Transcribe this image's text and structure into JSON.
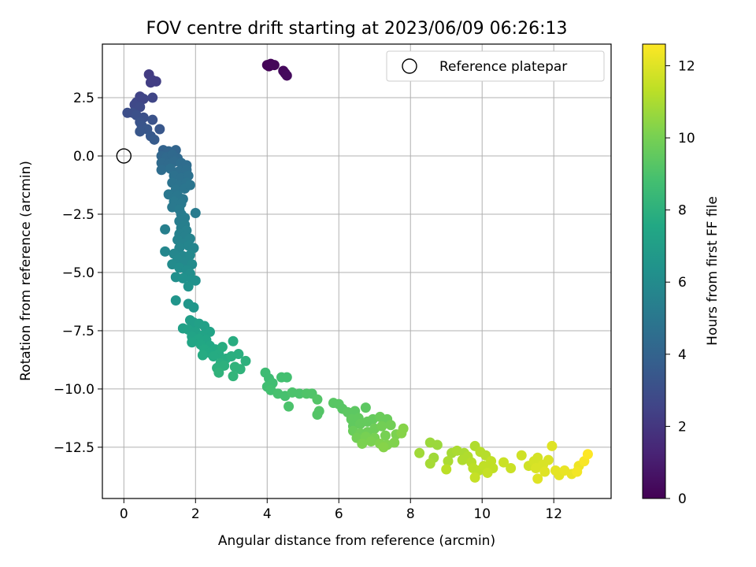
{
  "chart_data": {
    "type": "scatter",
    "title": "FOV centre drift starting at 2023/06/09 06:26:13",
    "xlabel": "Angular distance from reference (arcmin)",
    "ylabel": "Rotation from reference (arcmin)",
    "xlim": [
      -0.6,
      13.6
    ],
    "ylim": [
      -14.7,
      4.8
    ],
    "xticks": [
      0,
      2,
      4,
      6,
      8,
      10,
      12
    ],
    "yticks": [
      2.5,
      0.0,
      -2.5,
      -5.0,
      -7.5,
      -10.0,
      -12.5
    ],
    "ytick_labels": [
      "2.5",
      "0.0",
      "−2.5",
      "−5.0",
      "−7.5",
      "−10.0",
      "−12.5"
    ],
    "grid": true,
    "legend": {
      "placement": "top-right",
      "entries": [
        "Reference platepar"
      ]
    },
    "reference_point": {
      "x": 0,
      "y": 0,
      "label": "Reference platepar"
    },
    "colorbar": {
      "label": "Hours from first FF file",
      "colormap": "viridis",
      "range": [
        0,
        12.6
      ],
      "ticks": [
        0,
        2,
        4,
        6,
        8,
        10,
        12
      ]
    },
    "points": [
      {
        "x": 4.0,
        "y": 3.9,
        "h": 0.1
      },
      {
        "x": 4.05,
        "y": 3.85,
        "h": 0.1
      },
      {
        "x": 4.1,
        "y": 3.95,
        "h": 0.15
      },
      {
        "x": 4.2,
        "y": 3.9,
        "h": 0.2
      },
      {
        "x": 4.45,
        "y": 3.65,
        "h": 0.3
      },
      {
        "x": 4.5,
        "y": 3.55,
        "h": 0.3
      },
      {
        "x": 4.55,
        "y": 3.45,
        "h": 0.35
      },
      {
        "x": 0.7,
        "y": 3.5,
        "h": 2.2
      },
      {
        "x": 0.75,
        "y": 3.15,
        "h": 2.3
      },
      {
        "x": 0.9,
        "y": 3.2,
        "h": 2.3
      },
      {
        "x": 0.8,
        "y": 3.25,
        "h": 2.3
      },
      {
        "x": 0.45,
        "y": 2.55,
        "h": 2.5
      },
      {
        "x": 0.35,
        "y": 2.3,
        "h": 2.6
      },
      {
        "x": 0.55,
        "y": 2.45,
        "h": 2.6
      },
      {
        "x": 0.8,
        "y": 2.5,
        "h": 2.6
      },
      {
        "x": 0.3,
        "y": 2.2,
        "h": 2.7
      },
      {
        "x": 0.45,
        "y": 2.1,
        "h": 2.8
      },
      {
        "x": 0.1,
        "y": 1.85,
        "h": 3.0
      },
      {
        "x": 0.25,
        "y": 1.85,
        "h": 3.0
      },
      {
        "x": 0.35,
        "y": 1.75,
        "h": 3.1
      },
      {
        "x": 0.55,
        "y": 1.65,
        "h": 3.1
      },
      {
        "x": 0.45,
        "y": 1.45,
        "h": 3.2
      },
      {
        "x": 0.8,
        "y": 1.55,
        "h": 3.2
      },
      {
        "x": 0.5,
        "y": 1.3,
        "h": 3.3
      },
      {
        "x": 0.65,
        "y": 1.15,
        "h": 3.4
      },
      {
        "x": 0.45,
        "y": 1.05,
        "h": 3.4
      },
      {
        "x": 1.0,
        "y": 1.15,
        "h": 3.4
      },
      {
        "x": 0.75,
        "y": 0.85,
        "h": 3.5
      },
      {
        "x": 0.85,
        "y": 0.7,
        "h": 3.6
      },
      {
        "x": 1.1,
        "y": 0.25,
        "h": 4.0
      },
      {
        "x": 1.25,
        "y": 0.2,
        "h": 4.1
      },
      {
        "x": 1.45,
        "y": 0.25,
        "h": 4.1
      },
      {
        "x": 1.05,
        "y": 0.0,
        "h": 4.2
      },
      {
        "x": 1.2,
        "y": -0.05,
        "h": 4.3
      },
      {
        "x": 1.35,
        "y": 0.05,
        "h": 4.3
      },
      {
        "x": 1.5,
        "y": -0.1,
        "h": 4.3
      },
      {
        "x": 1.05,
        "y": -0.3,
        "h": 4.4
      },
      {
        "x": 1.25,
        "y": -0.35,
        "h": 4.4
      },
      {
        "x": 1.4,
        "y": -0.25,
        "h": 4.4
      },
      {
        "x": 1.6,
        "y": -0.3,
        "h": 4.5
      },
      {
        "x": 1.75,
        "y": -0.4,
        "h": 4.5
      },
      {
        "x": 1.05,
        "y": -0.6,
        "h": 4.5
      },
      {
        "x": 1.3,
        "y": -0.55,
        "h": 4.6
      },
      {
        "x": 1.55,
        "y": -0.65,
        "h": 4.6
      },
      {
        "x": 1.75,
        "y": -0.6,
        "h": 4.6
      },
      {
        "x": 1.4,
        "y": -0.85,
        "h": 4.7
      },
      {
        "x": 1.6,
        "y": -0.95,
        "h": 4.7
      },
      {
        "x": 1.8,
        "y": -0.85,
        "h": 4.7
      },
      {
        "x": 1.35,
        "y": -1.15,
        "h": 4.8
      },
      {
        "x": 1.55,
        "y": -1.25,
        "h": 4.8
      },
      {
        "x": 1.75,
        "y": -1.15,
        "h": 4.8
      },
      {
        "x": 1.45,
        "y": -1.45,
        "h": 4.9
      },
      {
        "x": 1.7,
        "y": -1.4,
        "h": 4.9
      },
      {
        "x": 1.85,
        "y": -1.25,
        "h": 4.9
      },
      {
        "x": 1.25,
        "y": -1.65,
        "h": 5.0
      },
      {
        "x": 1.5,
        "y": -1.7,
        "h": 5.0
      },
      {
        "x": 1.65,
        "y": -1.85,
        "h": 5.0
      },
      {
        "x": 1.4,
        "y": -1.95,
        "h": 5.1
      },
      {
        "x": 1.6,
        "y": -2.05,
        "h": 5.1
      },
      {
        "x": 1.35,
        "y": -2.2,
        "h": 5.1
      },
      {
        "x": 1.55,
        "y": -2.3,
        "h": 5.2
      },
      {
        "x": 2.0,
        "y": -2.45,
        "h": 5.2
      },
      {
        "x": 1.6,
        "y": -2.5,
        "h": 5.2
      },
      {
        "x": 1.7,
        "y": -2.65,
        "h": 5.3
      },
      {
        "x": 1.55,
        "y": -2.8,
        "h": 5.3
      },
      {
        "x": 1.7,
        "y": -2.95,
        "h": 5.4
      },
      {
        "x": 1.15,
        "y": -3.15,
        "h": 5.4
      },
      {
        "x": 1.6,
        "y": -3.1,
        "h": 5.4
      },
      {
        "x": 1.75,
        "y": -3.2,
        "h": 5.5
      },
      {
        "x": 1.55,
        "y": -3.35,
        "h": 5.5
      },
      {
        "x": 1.7,
        "y": -3.45,
        "h": 5.5
      },
      {
        "x": 1.85,
        "y": -3.55,
        "h": 5.6
      },
      {
        "x": 1.5,
        "y": -3.6,
        "h": 5.6
      },
      {
        "x": 1.65,
        "y": -3.75,
        "h": 5.6
      },
      {
        "x": 1.8,
        "y": -3.85,
        "h": 5.7
      },
      {
        "x": 1.95,
        "y": -3.95,
        "h": 5.7
      },
      {
        "x": 1.55,
        "y": -3.95,
        "h": 5.7
      },
      {
        "x": 1.15,
        "y": -4.1,
        "h": 5.8
      },
      {
        "x": 1.4,
        "y": -4.2,
        "h": 5.8
      },
      {
        "x": 1.65,
        "y": -4.3,
        "h": 5.8
      },
      {
        "x": 1.85,
        "y": -4.25,
        "h": 5.9
      },
      {
        "x": 1.5,
        "y": -4.45,
        "h": 5.9
      },
      {
        "x": 1.7,
        "y": -4.55,
        "h": 5.9
      },
      {
        "x": 1.35,
        "y": -4.65,
        "h": 6.0
      },
      {
        "x": 1.9,
        "y": -4.65,
        "h": 6.0
      },
      {
        "x": 1.55,
        "y": -4.8,
        "h": 6.1
      },
      {
        "x": 1.75,
        "y": -4.9,
        "h": 6.1
      },
      {
        "x": 1.85,
        "y": -5.05,
        "h": 6.2
      },
      {
        "x": 1.45,
        "y": -5.2,
        "h": 6.2
      },
      {
        "x": 1.65,
        "y": -5.25,
        "h": 6.3
      },
      {
        "x": 1.9,
        "y": -5.3,
        "h": 6.3
      },
      {
        "x": 2.0,
        "y": -5.35,
        "h": 6.3
      },
      {
        "x": 1.8,
        "y": -5.6,
        "h": 6.4
      },
      {
        "x": 1.45,
        "y": -6.2,
        "h": 6.5
      },
      {
        "x": 1.8,
        "y": -6.35,
        "h": 6.6
      },
      {
        "x": 1.95,
        "y": -6.5,
        "h": 6.6
      },
      {
        "x": 1.85,
        "y": -7.05,
        "h": 7.0
      },
      {
        "x": 1.95,
        "y": -7.15,
        "h": 7.0
      },
      {
        "x": 2.1,
        "y": -7.2,
        "h": 7.1
      },
      {
        "x": 2.25,
        "y": -7.3,
        "h": 7.1
      },
      {
        "x": 1.65,
        "y": -7.4,
        "h": 7.1
      },
      {
        "x": 1.8,
        "y": -7.45,
        "h": 7.2
      },
      {
        "x": 2.0,
        "y": -7.55,
        "h": 7.2
      },
      {
        "x": 2.4,
        "y": -7.55,
        "h": 7.3
      },
      {
        "x": 2.2,
        "y": -7.7,
        "h": 7.3
      },
      {
        "x": 1.9,
        "y": -7.75,
        "h": 7.3
      },
      {
        "x": 2.1,
        "y": -7.85,
        "h": 7.4
      },
      {
        "x": 1.9,
        "y": -8.0,
        "h": 7.4
      },
      {
        "x": 2.3,
        "y": -7.9,
        "h": 7.4
      },
      {
        "x": 2.15,
        "y": -8.1,
        "h": 7.5
      },
      {
        "x": 2.4,
        "y": -8.15,
        "h": 7.5
      },
      {
        "x": 2.25,
        "y": -8.3,
        "h": 7.6
      },
      {
        "x": 2.55,
        "y": -8.3,
        "h": 7.6
      },
      {
        "x": 2.4,
        "y": -8.45,
        "h": 7.6
      },
      {
        "x": 2.2,
        "y": -8.55,
        "h": 7.7
      },
      {
        "x": 2.65,
        "y": -8.5,
        "h": 7.7
      },
      {
        "x": 2.5,
        "y": -8.6,
        "h": 7.7
      },
      {
        "x": 2.75,
        "y": -8.2,
        "h": 7.8
      },
      {
        "x": 3.05,
        "y": -7.95,
        "h": 7.8
      },
      {
        "x": 2.85,
        "y": -8.7,
        "h": 7.8
      },
      {
        "x": 3.0,
        "y": -8.6,
        "h": 7.9
      },
      {
        "x": 3.2,
        "y": -8.5,
        "h": 7.9
      },
      {
        "x": 2.7,
        "y": -8.9,
        "h": 7.9
      },
      {
        "x": 3.4,
        "y": -8.8,
        "h": 8.0
      },
      {
        "x": 2.6,
        "y": -9.1,
        "h": 8.0
      },
      {
        "x": 2.8,
        "y": -9.0,
        "h": 8.0
      },
      {
        "x": 3.1,
        "y": -9.05,
        "h": 8.1
      },
      {
        "x": 3.25,
        "y": -9.15,
        "h": 8.1
      },
      {
        "x": 2.65,
        "y": -9.3,
        "h": 8.1
      },
      {
        "x": 3.05,
        "y": -9.45,
        "h": 8.2
      },
      {
        "x": 3.95,
        "y": -9.3,
        "h": 8.6
      },
      {
        "x": 4.05,
        "y": -9.55,
        "h": 8.6
      },
      {
        "x": 4.15,
        "y": -9.75,
        "h": 8.7
      },
      {
        "x": 4.0,
        "y": -9.9,
        "h": 8.7
      },
      {
        "x": 4.1,
        "y": -10.05,
        "h": 8.8
      },
      {
        "x": 4.4,
        "y": -9.5,
        "h": 8.8
      },
      {
        "x": 4.55,
        "y": -9.5,
        "h": 8.8
      },
      {
        "x": 4.3,
        "y": -10.2,
        "h": 8.9
      },
      {
        "x": 4.5,
        "y": -10.3,
        "h": 8.9
      },
      {
        "x": 4.7,
        "y": -10.15,
        "h": 9.0
      },
      {
        "x": 4.9,
        "y": -10.2,
        "h": 9.0
      },
      {
        "x": 4.6,
        "y": -10.75,
        "h": 9.0
      },
      {
        "x": 5.1,
        "y": -10.2,
        "h": 9.1
      },
      {
        "x": 5.25,
        "y": -10.2,
        "h": 9.1
      },
      {
        "x": 5.4,
        "y": -10.45,
        "h": 9.2
      },
      {
        "x": 5.45,
        "y": -10.95,
        "h": 9.2
      },
      {
        "x": 5.4,
        "y": -11.1,
        "h": 9.2
      },
      {
        "x": 5.85,
        "y": -10.6,
        "h": 9.3
      },
      {
        "x": 6.0,
        "y": -10.65,
        "h": 9.3
      },
      {
        "x": 6.1,
        "y": -10.85,
        "h": 9.3
      },
      {
        "x": 6.25,
        "y": -11.0,
        "h": 9.4
      },
      {
        "x": 6.45,
        "y": -10.95,
        "h": 9.4
      },
      {
        "x": 6.75,
        "y": -10.8,
        "h": 9.4
      },
      {
        "x": 6.35,
        "y": -11.3,
        "h": 9.5
      },
      {
        "x": 6.55,
        "y": -11.25,
        "h": 9.5
      },
      {
        "x": 6.4,
        "y": -11.6,
        "h": 9.5
      },
      {
        "x": 6.6,
        "y": -11.5,
        "h": 9.6
      },
      {
        "x": 6.8,
        "y": -11.4,
        "h": 9.6
      },
      {
        "x": 6.95,
        "y": -11.3,
        "h": 9.6
      },
      {
        "x": 7.15,
        "y": -11.2,
        "h": 9.7
      },
      {
        "x": 7.35,
        "y": -11.3,
        "h": 9.7
      },
      {
        "x": 6.4,
        "y": -11.8,
        "h": 9.7
      },
      {
        "x": 6.6,
        "y": -11.9,
        "h": 9.8
      },
      {
        "x": 6.8,
        "y": -11.85,
        "h": 9.8
      },
      {
        "x": 7.0,
        "y": -11.7,
        "h": 9.8
      },
      {
        "x": 7.2,
        "y": -11.6,
        "h": 9.9
      },
      {
        "x": 7.45,
        "y": -11.55,
        "h": 9.9
      },
      {
        "x": 6.5,
        "y": -12.1,
        "h": 9.9
      },
      {
        "x": 6.75,
        "y": -12.05,
        "h": 10.0
      },
      {
        "x": 7.0,
        "y": -12.1,
        "h": 10.0
      },
      {
        "x": 7.3,
        "y": -12.0,
        "h": 10.0
      },
      {
        "x": 7.6,
        "y": -11.95,
        "h": 10.1
      },
      {
        "x": 6.65,
        "y": -12.35,
        "h": 10.1
      },
      {
        "x": 6.9,
        "y": -12.25,
        "h": 10.1
      },
      {
        "x": 7.15,
        "y": -12.35,
        "h": 10.2
      },
      {
        "x": 7.35,
        "y": -12.4,
        "h": 10.2
      },
      {
        "x": 7.55,
        "y": -12.3,
        "h": 10.2
      },
      {
        "x": 7.8,
        "y": -11.7,
        "h": 10.3
      },
      {
        "x": 7.75,
        "y": -11.9,
        "h": 10.3
      },
      {
        "x": 7.25,
        "y": -12.5,
        "h": 10.3
      },
      {
        "x": 8.55,
        "y": -12.3,
        "h": 10.7
      },
      {
        "x": 8.75,
        "y": -12.4,
        "h": 10.7
      },
      {
        "x": 8.25,
        "y": -12.75,
        "h": 10.8
      },
      {
        "x": 8.65,
        "y": -12.95,
        "h": 10.8
      },
      {
        "x": 8.55,
        "y": -13.2,
        "h": 10.9
      },
      {
        "x": 9.15,
        "y": -12.75,
        "h": 10.9
      },
      {
        "x": 9.05,
        "y": -13.1,
        "h": 11.0
      },
      {
        "x": 9.3,
        "y": -12.65,
        "h": 11.0
      },
      {
        "x": 9.5,
        "y": -12.75,
        "h": 11.0
      },
      {
        "x": 9.45,
        "y": -13.05,
        "h": 11.1
      },
      {
        "x": 9.6,
        "y": -12.9,
        "h": 11.1
      },
      {
        "x": 9.8,
        "y": -12.45,
        "h": 11.1
      },
      {
        "x": 9.7,
        "y": -13.15,
        "h": 11.2
      },
      {
        "x": 9.95,
        "y": -12.7,
        "h": 11.2
      },
      {
        "x": 10.1,
        "y": -12.85,
        "h": 11.2
      },
      {
        "x": 9.0,
        "y": -13.45,
        "h": 11.3
      },
      {
        "x": 9.75,
        "y": -13.4,
        "h": 11.3
      },
      {
        "x": 9.9,
        "y": -13.5,
        "h": 11.3
      },
      {
        "x": 10.05,
        "y": -13.3,
        "h": 11.4
      },
      {
        "x": 10.25,
        "y": -13.1,
        "h": 11.4
      },
      {
        "x": 10.3,
        "y": -13.4,
        "h": 11.4
      },
      {
        "x": 9.8,
        "y": -13.8,
        "h": 11.5
      },
      {
        "x": 10.15,
        "y": -13.6,
        "h": 11.5
      },
      {
        "x": 10.6,
        "y": -13.15,
        "h": 11.6
      },
      {
        "x": 10.8,
        "y": -13.4,
        "h": 11.6
      },
      {
        "x": 11.1,
        "y": -12.85,
        "h": 11.7
      },
      {
        "x": 11.3,
        "y": -13.3,
        "h": 11.7
      },
      {
        "x": 11.45,
        "y": -13.1,
        "h": 11.8
      },
      {
        "x": 11.55,
        "y": -12.95,
        "h": 11.8
      },
      {
        "x": 11.5,
        "y": -13.4,
        "h": 11.9
      },
      {
        "x": 11.7,
        "y": -13.25,
        "h": 11.9
      },
      {
        "x": 11.85,
        "y": -13.05,
        "h": 11.9
      },
      {
        "x": 11.55,
        "y": -13.85,
        "h": 12.0
      },
      {
        "x": 11.75,
        "y": -13.55,
        "h": 12.0
      },
      {
        "x": 11.95,
        "y": -12.45,
        "h": 12.0
      },
      {
        "x": 12.05,
        "y": -13.5,
        "h": 12.1
      },
      {
        "x": 12.15,
        "y": -13.7,
        "h": 12.1
      },
      {
        "x": 12.3,
        "y": -13.5,
        "h": 12.2
      },
      {
        "x": 12.5,
        "y": -13.65,
        "h": 12.2
      },
      {
        "x": 12.7,
        "y": -13.3,
        "h": 12.3
      },
      {
        "x": 12.65,
        "y": -13.55,
        "h": 12.4
      },
      {
        "x": 12.85,
        "y": -13.1,
        "h": 12.5
      },
      {
        "x": 12.95,
        "y": -12.8,
        "h": 12.6
      }
    ]
  }
}
